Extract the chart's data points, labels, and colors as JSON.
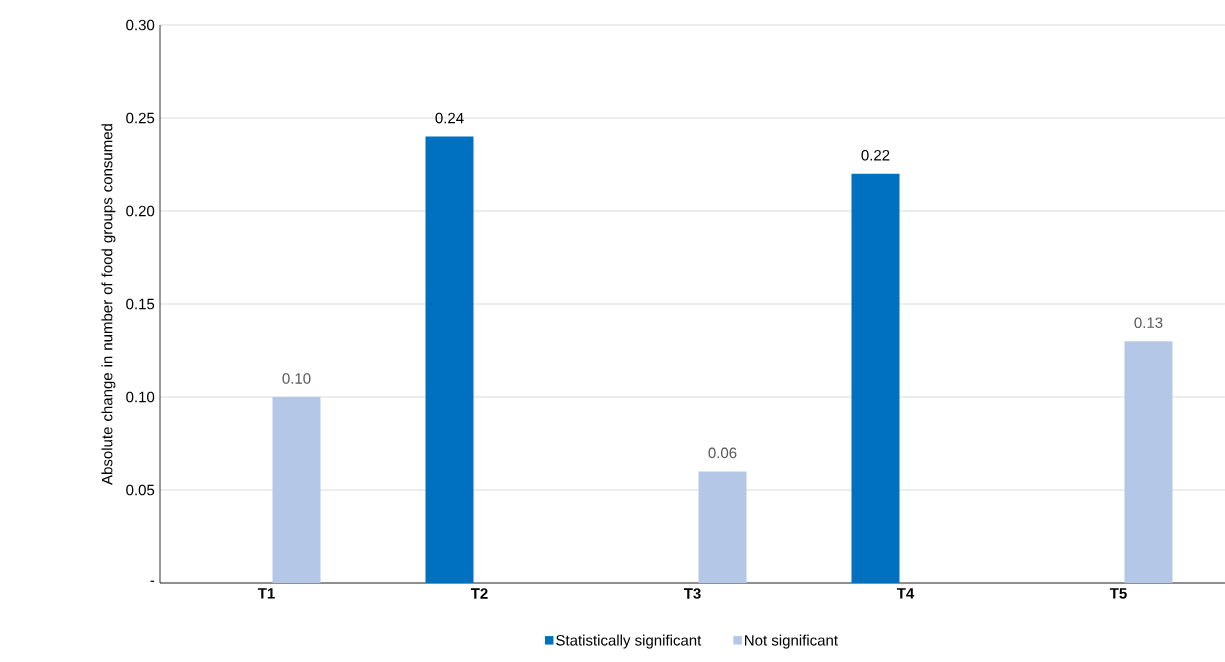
{
  "chart_data": {
    "type": "bar",
    "ylabel": "Absolute change in number of food groups consumed",
    "categories": [
      "T1",
      "T2",
      "T3",
      "T4",
      "T5"
    ],
    "series": [
      {
        "name": "Statistically significant",
        "color": "#0070c0",
        "values": [
          null,
          0.24,
          null,
          0.22,
          null
        ],
        "value_labels": [
          null,
          "0.24",
          null,
          "0.22",
          null
        ]
      },
      {
        "name": "Not significant",
        "color": "#b4c7e7",
        "values": [
          0.1,
          null,
          0.06,
          null,
          0.13
        ],
        "value_labels": [
          "0.10",
          null,
          "0.06",
          null,
          "0.13"
        ]
      }
    ],
    "ylim": [
      0,
      0.3
    ],
    "yticks": [
      {
        "value": 0,
        "label": "-"
      },
      {
        "value": 0.05,
        "label": "0.05"
      },
      {
        "value": 0.1,
        "label": "0.10"
      },
      {
        "value": 0.15,
        "label": "0.15"
      },
      {
        "value": 0.2,
        "label": "0.20"
      },
      {
        "value": 0.25,
        "label": "0.25"
      },
      {
        "value": 0.3,
        "label": "0.30"
      }
    ],
    "grid": "y",
    "legend": "bottom"
  }
}
